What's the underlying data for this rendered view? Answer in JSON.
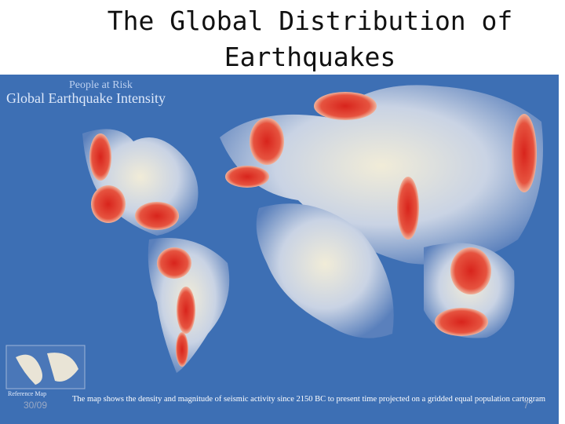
{
  "header": {
    "title": "The Global Distribution of Earthquakes"
  },
  "map": {
    "subtitle": "People at Risk",
    "title": "Global Earthquake Intensity",
    "caption": "The map shows the density and magnitude of seismic activity since 2150 BC to present time projected on a gridded equal population cartogram",
    "reference_label": "Reference Map"
  },
  "footer": {
    "date": "30/09",
    "page": "7"
  }
}
